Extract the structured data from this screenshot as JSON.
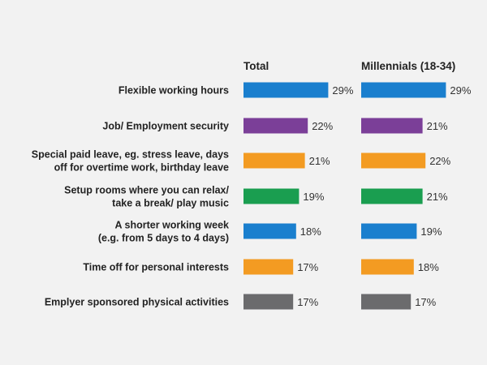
{
  "chart_data": {
    "type": "bar",
    "orientation": "horizontal",
    "title": "",
    "xlim": [
      0,
      30
    ],
    "grid": false,
    "legend": "none",
    "categories": [
      [
        "Flexible working hours"
      ],
      [
        "Job/ Employment security"
      ],
      [
        "Special paid leave, eg. stress leave, days",
        "off for overtime work, birthday leave"
      ],
      [
        "Setup rooms where you can relax/",
        "take a break/ play music"
      ],
      [
        "A shorter working week",
        "(e.g. from 5 days to 4 days)"
      ],
      [
        "Time off for personal interests"
      ],
      [
        "Emplyer sponsored physical activities"
      ]
    ],
    "bar_colors": [
      "#1a7fce",
      "#7b3f98",
      "#f39b22",
      "#1a9e50",
      "#1a7fce",
      "#f39b22",
      "#6b6b6d"
    ],
    "series": [
      {
        "name": "Total",
        "values": [
          29,
          22,
          21,
          19,
          18,
          17,
          17
        ],
        "labels": [
          "29%",
          "22%",
          "21%",
          "19%",
          "18%",
          "17%",
          "17%"
        ]
      },
      {
        "name": "Millennials (18-34)",
        "values": [
          29,
          21,
          22,
          21,
          19,
          18,
          17
        ],
        "labels": [
          "29%",
          "21%",
          "22%",
          "21%",
          "19%",
          "18%",
          "17%"
        ]
      }
    ]
  }
}
